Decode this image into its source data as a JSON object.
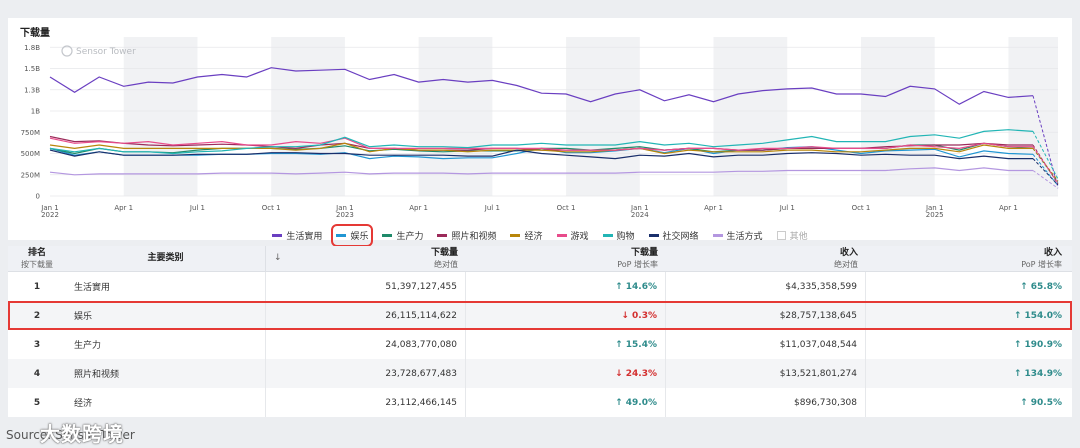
{
  "chart_data": {
    "type": "line",
    "title": "下载量",
    "watermark": "Sensor Tower",
    "y_ticks": [
      "0",
      "250M",
      "500M",
      "750M",
      "1B",
      "1.3B",
      "1.5B",
      "1.8B"
    ],
    "ylim": [
      0,
      1800000000
    ],
    "y_tick_values": [
      0,
      250000000,
      500000000,
      750000000,
      1000000000,
      1250000000,
      1500000000,
      1750000000
    ],
    "x_ticks": [
      {
        "label": "Jan 1",
        "year": "2022",
        "index": 0
      },
      {
        "label": "Apr 1",
        "year": "",
        "index": 3
      },
      {
        "label": "Jul 1",
        "year": "",
        "index": 6
      },
      {
        "label": "Oct 1",
        "year": "",
        "index": 9
      },
      {
        "label": "Jan 1",
        "year": "2023",
        "index": 12
      },
      {
        "label": "Apr 1",
        "year": "",
        "index": 15
      },
      {
        "label": "Jul 1",
        "year": "",
        "index": 18
      },
      {
        "label": "Oct 1",
        "year": "",
        "index": 21
      },
      {
        "label": "Jan 1",
        "year": "2024",
        "index": 24
      },
      {
        "label": "Apr 1",
        "year": "",
        "index": 27
      },
      {
        "label": "Jul 1",
        "year": "",
        "index": 30
      },
      {
        "label": "Oct 1",
        "year": "",
        "index": 33
      },
      {
        "label": "Jan 1",
        "year": "2025",
        "index": 36
      },
      {
        "label": "Apr 1",
        "year": "",
        "index": 39
      }
    ],
    "grid": true,
    "legend_position": "bottom",
    "series": [
      {
        "name": "生活實用",
        "color": "#6a3fc1",
        "last_partial": 100000000,
        "values": [
          1400,
          1220,
          1400,
          1290,
          1340,
          1330,
          1400,
          1430,
          1400,
          1510,
          1470,
          1480,
          1490,
          1370,
          1430,
          1340,
          1370,
          1340,
          1360,
          1300,
          1210,
          1200,
          1110,
          1200,
          1250,
          1120,
          1190,
          1110,
          1200,
          1240,
          1260,
          1270,
          1200,
          1200,
          1170,
          1290,
          1260,
          1080,
          1230,
          1160,
          1180
        ]
      },
      {
        "name": "娱乐",
        "color": "#2196d3",
        "last_partial": 120000000,
        "values": [
          560,
          480,
          520,
          480,
          480,
          480,
          480,
          490,
          490,
          500,
          500,
          490,
          510,
          440,
          470,
          460,
          440,
          450,
          450,
          500,
          560,
          510,
          510,
          530,
          560,
          510,
          560,
          500,
          540,
          540,
          570,
          580,
          540,
          500,
          530,
          540,
          550,
          460,
          530,
          500,
          490
        ]
      },
      {
        "name": "生产力",
        "color": "#1f8a6a",
        "last_partial": 160000000,
        "values": [
          560,
          500,
          560,
          520,
          520,
          510,
          540,
          560,
          560,
          560,
          550,
          560,
          590,
          530,
          550,
          530,
          520,
          530,
          530,
          530,
          560,
          560,
          540,
          560,
          580,
          540,
          560,
          520,
          540,
          540,
          560,
          560,
          560,
          560,
          560,
          600,
          600,
          540,
          620,
          580,
          560
        ]
      },
      {
        "name": "照片和视频",
        "color": "#9c2a5a",
        "last_partial": 140000000,
        "values": [
          700,
          640,
          650,
          620,
          600,
          590,
          600,
          610,
          600,
          580,
          560,
          600,
          620,
          560,
          560,
          540,
          540,
          540,
          560,
          560,
          540,
          540,
          540,
          540,
          560,
          540,
          560,
          560,
          540,
          540,
          560,
          560,
          560,
          560,
          580,
          590,
          600,
          600,
          620,
          600,
          600
        ]
      },
      {
        "name": "经济",
        "color": "#b8860b",
        "last_partial": 180000000,
        "values": [
          600,
          560,
          600,
          560,
          560,
          560,
          560,
          560,
          560,
          560,
          540,
          560,
          620,
          520,
          560,
          540,
          540,
          520,
          540,
          540,
          540,
          520,
          520,
          540,
          560,
          500,
          540,
          520,
          520,
          520,
          540,
          540,
          520,
          520,
          540,
          560,
          560,
          520,
          600,
          560,
          560
        ]
      },
      {
        "name": "游戏",
        "color": "#e84c8b",
        "last_partial": 150000000,
        "values": [
          680,
          620,
          640,
          620,
          640,
          600,
          620,
          640,
          600,
          600,
          640,
          620,
          680,
          560,
          560,
          560,
          560,
          560,
          560,
          560,
          560,
          540,
          540,
          540,
          560,
          540,
          560,
          560,
          540,
          560,
          560,
          580,
          560,
          560,
          560,
          600,
          580,
          560,
          620,
          580,
          580
        ]
      },
      {
        "name": "购物",
        "color": "#22b5b5",
        "last_partial": 200000000,
        "values": [
          560,
          520,
          560,
          520,
          520,
          500,
          520,
          530,
          560,
          580,
          580,
          600,
          690,
          580,
          600,
          580,
          580,
          570,
          600,
          600,
          620,
          600,
          600,
          600,
          640,
          600,
          620,
          580,
          600,
          620,
          660,
          700,
          640,
          640,
          640,
          700,
          720,
          680,
          760,
          780,
          760
        ]
      },
      {
        "name": "社交网络",
        "color": "#1a2f6b",
        "last_partial": 130000000,
        "values": [
          540,
          470,
          520,
          480,
          480,
          480,
          490,
          490,
          490,
          510,
          510,
          500,
          500,
          480,
          480,
          480,
          480,
          470,
          470,
          540,
          500,
          480,
          460,
          440,
          480,
          470,
          500,
          460,
          480,
          480,
          500,
          510,
          500,
          480,
          490,
          480,
          480,
          440,
          470,
          440,
          440
        ]
      },
      {
        "name": "生活方式",
        "color": "#b497e0",
        "last_partial": 90000000,
        "values": [
          280,
          250,
          260,
          260,
          260,
          260,
          260,
          270,
          270,
          270,
          260,
          270,
          280,
          260,
          270,
          270,
          270,
          260,
          270,
          270,
          270,
          270,
          270,
          270,
          280,
          280,
          280,
          280,
          290,
          290,
          300,
          300,
          300,
          300,
          300,
          320,
          330,
          300,
          330,
          300,
          300
        ]
      },
      {
        "name": "其他",
        "color": "#cccccc",
        "muted": true,
        "values": []
      }
    ]
  },
  "legend": {
    "items": [
      {
        "name": "生活實用",
        "color": "#6a3fc1"
      },
      {
        "name": "娱乐",
        "color": "#2196d3",
        "highlight": true
      },
      {
        "name": "生产力",
        "color": "#1f8a6a"
      },
      {
        "name": "照片和视频",
        "color": "#9c2a5a"
      },
      {
        "name": "经济",
        "color": "#b8860b"
      },
      {
        "name": "游戏",
        "color": "#e84c8b"
      },
      {
        "name": "购物",
        "color": "#22b5b5"
      },
      {
        "name": "社交网络",
        "color": "#1a2f6b"
      },
      {
        "name": "生活方式",
        "color": "#b497e0"
      },
      {
        "name": "其他",
        "color": "#cccccc",
        "muted": true
      }
    ]
  },
  "table": {
    "headers": {
      "rank": "排名",
      "rank_sub": "按下载量",
      "category": "主要类别",
      "sort_arrow": "↓",
      "downloads": "下载量",
      "downloads_sub": "绝对值",
      "dl_growth": "下载量",
      "dl_growth_sub": "PoP 增长率",
      "revenue": "收入",
      "revenue_sub": "绝对值",
      "rev_growth": "收入",
      "rev_growth_sub": "PoP 增长率"
    },
    "rows": [
      {
        "rank": "1",
        "category": "生活實用",
        "downloads": "51,397,127,455",
        "dl_growth": "↑ 14.6%",
        "dl_dir": "up",
        "revenue": "$4,335,358,599",
        "rev_growth": "↑ 65.8%",
        "rev_dir": "up"
      },
      {
        "rank": "2",
        "category": "娱乐",
        "downloads": "26,115,114,622",
        "dl_growth": "↓ 0.3%",
        "dl_dir": "down",
        "revenue": "$28,757,138,645",
        "rev_growth": "↑ 154.0%",
        "rev_dir": "up",
        "highlight": true
      },
      {
        "rank": "3",
        "category": "生产力",
        "downloads": "24,083,770,080",
        "dl_growth": "↑ 15.4%",
        "dl_dir": "up",
        "revenue": "$11,037,048,544",
        "rev_growth": "↑ 190.9%",
        "rev_dir": "up"
      },
      {
        "rank": "4",
        "category": "照片和视频",
        "downloads": "23,728,677,483",
        "dl_growth": "↓ 24.3%",
        "dl_dir": "down",
        "revenue": "$13,521,801,274",
        "rev_growth": "↑ 134.9%",
        "rev_dir": "up"
      },
      {
        "rank": "5",
        "category": "经济",
        "downloads": "23,112,466,145",
        "dl_growth": "↑ 49.0%",
        "dl_dir": "up",
        "revenue": "$896,730,308",
        "rev_growth": "↑ 90.5%",
        "rev_dir": "up"
      }
    ]
  },
  "footer": {
    "source": "Source: Sensor Tower",
    "logo": "大数跨境"
  }
}
